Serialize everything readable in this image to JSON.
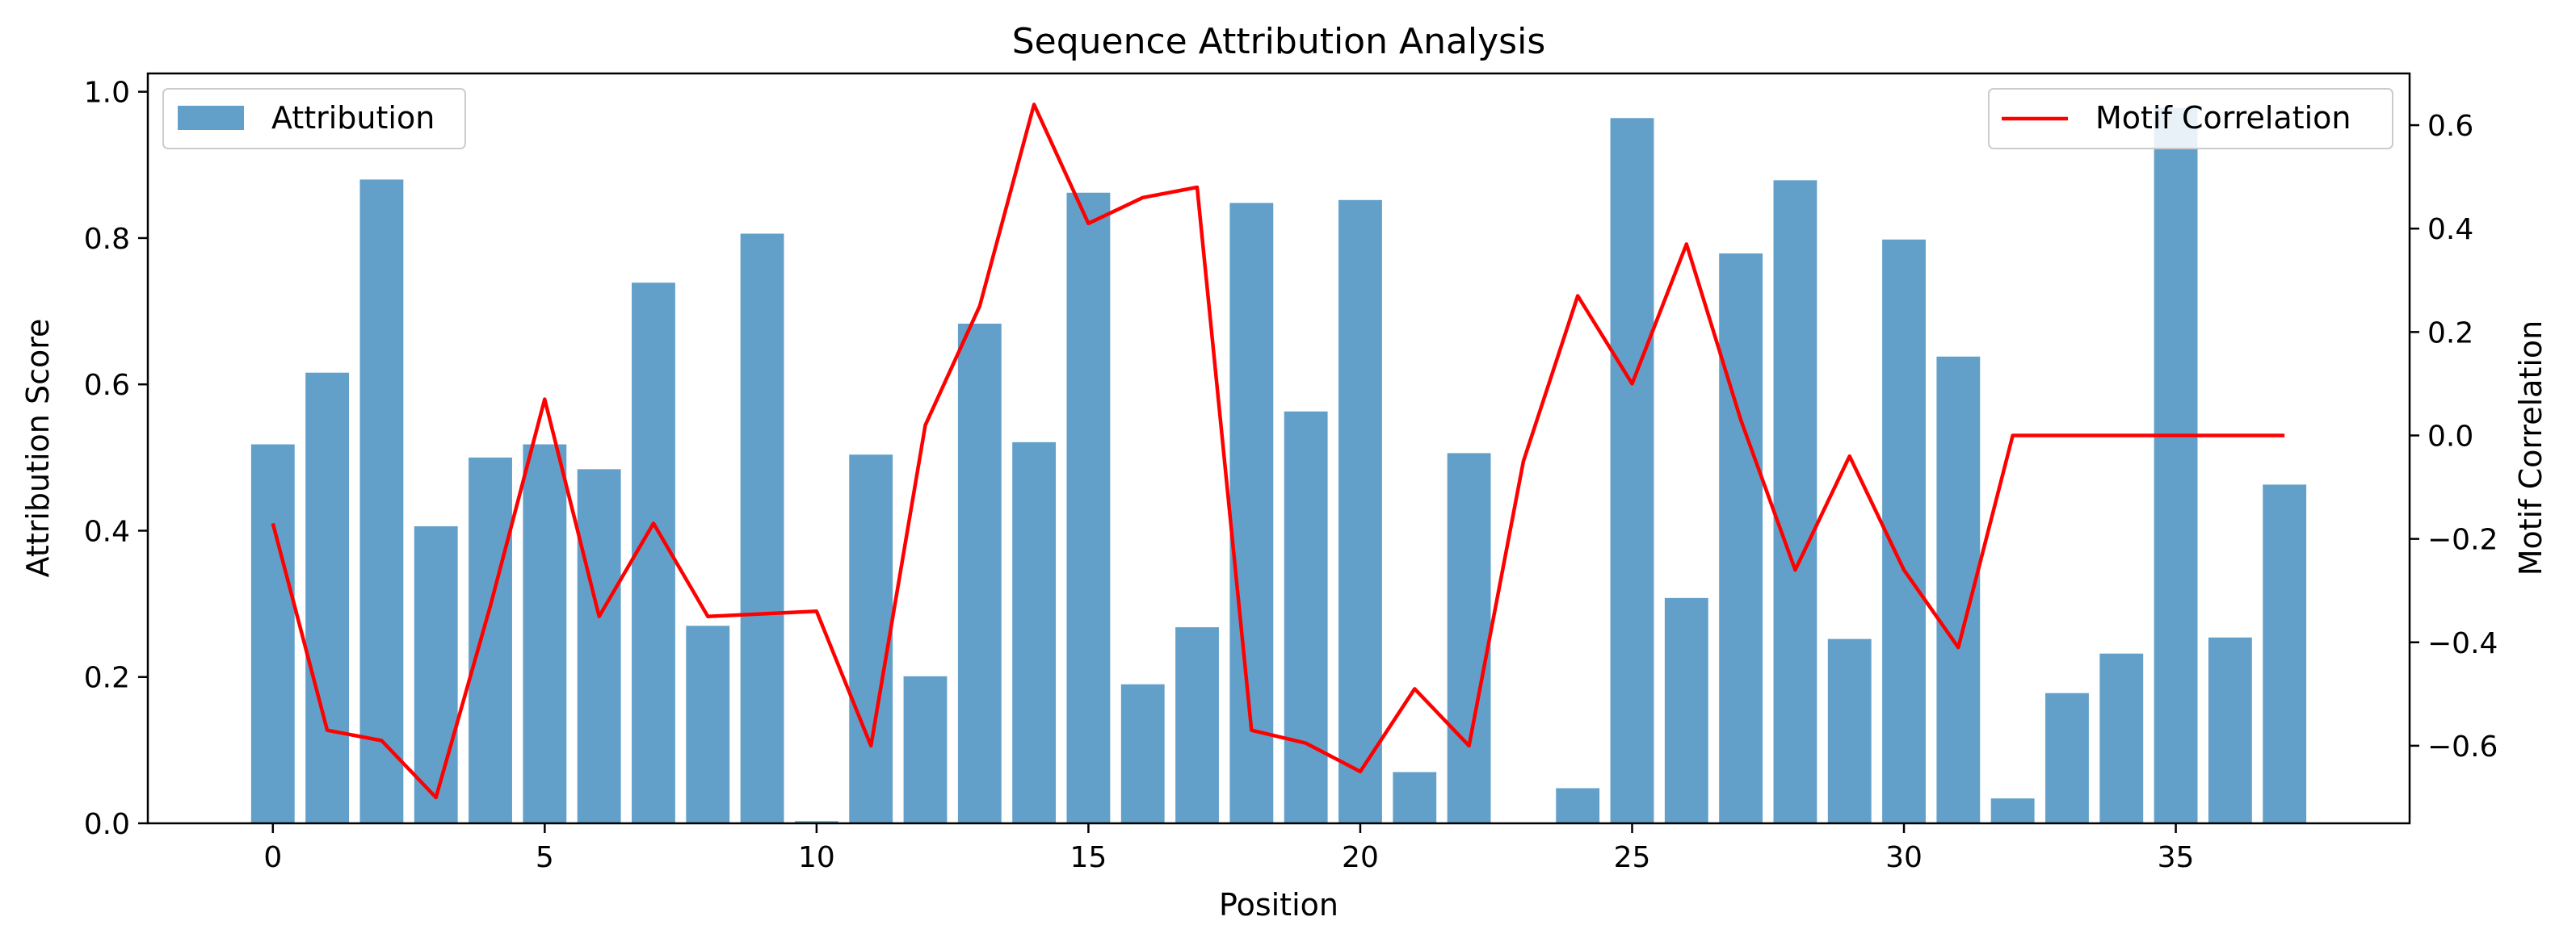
{
  "chart_data": {
    "type": "bar",
    "title": "Sequence Attribution Analysis",
    "xlabel": "Position",
    "ylabel": "Attribution Score",
    "y2label": "Motif Correlation",
    "xlim": [
      -2.3,
      39.3
    ],
    "ylim": [
      0,
      1.025
    ],
    "y2lim": [
      -0.75,
      0.7
    ],
    "x_ticks": [
      0,
      5,
      10,
      15,
      20,
      25,
      30,
      35
    ],
    "y_ticks": [
      0.0,
      0.2,
      0.4,
      0.6,
      0.8,
      1.0
    ],
    "y2_ticks": [
      -0.6,
      -0.4,
      -0.2,
      0.0,
      0.2,
      0.4,
      0.6
    ],
    "grid": false,
    "x": [
      0,
      1,
      2,
      3,
      4,
      5,
      6,
      7,
      8,
      9,
      10,
      11,
      12,
      13,
      14,
      15,
      16,
      17,
      18,
      19,
      20,
      21,
      22,
      23,
      24,
      25,
      26,
      27,
      28,
      29,
      30,
      31,
      32,
      33,
      34,
      35,
      36,
      37
    ],
    "series": [
      {
        "name": "Attribution",
        "kind": "bar",
        "axis": "left",
        "color": "#1f77b4",
        "values": [
          0.518,
          0.616,
          0.88,
          0.406,
          0.5,
          0.518,
          0.484,
          0.739,
          0.27,
          0.806,
          0.003,
          0.504,
          0.201,
          0.683,
          0.521,
          0.862,
          0.19,
          0.268,
          0.848,
          0.563,
          0.852,
          0.07,
          0.506,
          0.0,
          0.048,
          0.964,
          0.308,
          0.779,
          0.879,
          0.252,
          0.798,
          0.638,
          0.034,
          0.178,
          0.232,
          0.978,
          0.254,
          0.463
        ]
      },
      {
        "name": "Motif Correlation",
        "kind": "line",
        "axis": "right",
        "color": "#ff0000",
        "values": [
          -0.17,
          -0.57,
          -0.59,
          -0.7,
          -0.33,
          0.07,
          -0.35,
          -0.17,
          -0.35,
          -0.345,
          -0.34,
          -0.6,
          0.02,
          0.25,
          0.64,
          0.41,
          0.46,
          0.48,
          -0.57,
          -0.595,
          -0.65,
          -0.49,
          -0.6,
          -0.05,
          0.27,
          0.1,
          0.37,
          0.03,
          -0.26,
          -0.04,
          -0.26,
          -0.41,
          0.0,
          0.0,
          0.0,
          0.0,
          0.0,
          0.0
        ]
      }
    ],
    "legend_left": {
      "placement": "top-left",
      "label": "Attribution"
    },
    "legend_right": {
      "placement": "top-right",
      "label": "Motif Correlation"
    }
  }
}
